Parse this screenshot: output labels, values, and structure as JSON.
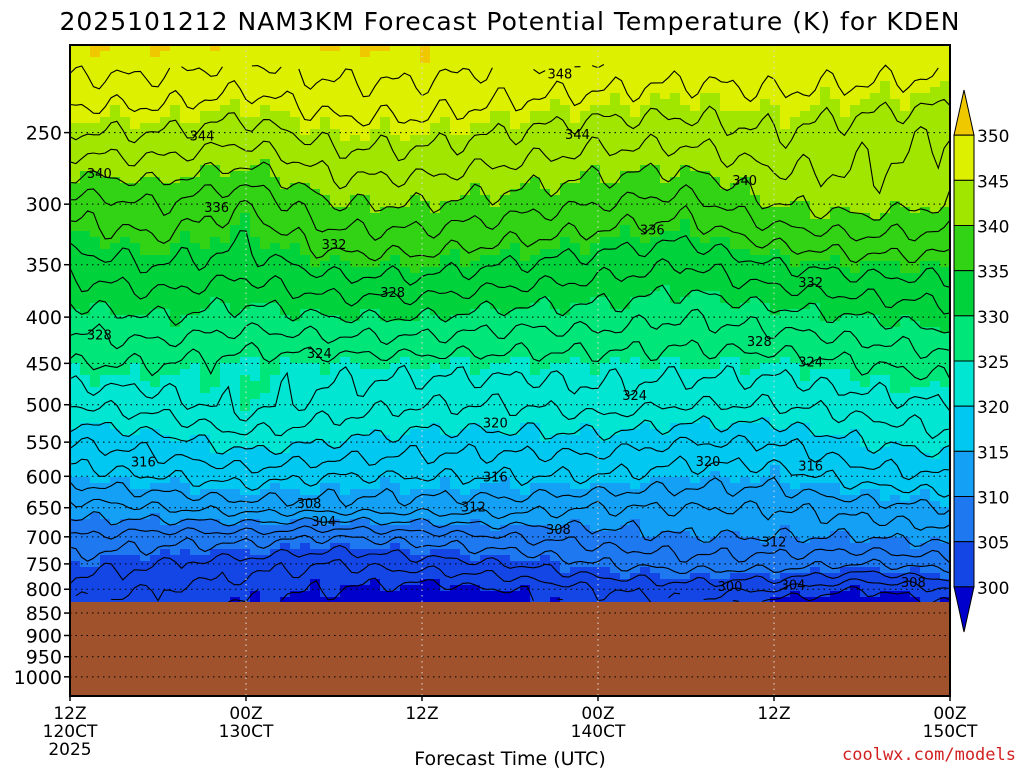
{
  "chart_data": {
    "type": "heatmap",
    "title": "2025101212 NAM3KM Forecast Potential Temperature (K) for KDEN",
    "xlabel": "Forecast Time (UTC)",
    "ylabel": "",
    "credit": "coolwx.com/models",
    "x_ticks": [
      {
        "hour": 0,
        "line1": "12Z",
        "line2": "120CT",
        "line3": "2025"
      },
      {
        "hour": 12,
        "line1": "00Z",
        "line2": "130CT",
        "line3": ""
      },
      {
        "hour": 24,
        "line1": "12Z",
        "line2": "",
        "line3": ""
      },
      {
        "hour": 36,
        "line1": "00Z",
        "line2": "140CT",
        "line3": ""
      },
      {
        "hour": 48,
        "line1": "12Z",
        "line2": "",
        "line3": ""
      },
      {
        "hour": 60,
        "line1": "00Z",
        "line2": "150CT",
        "line3": ""
      }
    ],
    "x_range": [
      0,
      60
    ],
    "y_ticks": [
      250,
      300,
      350,
      400,
      450,
      500,
      550,
      600,
      650,
      700,
      750,
      800,
      850,
      900,
      950,
      1000
    ],
    "y_range_hPa": [
      200,
      1050
    ],
    "y_scale": "log-pressure",
    "ground_level_hPa": 830,
    "colorbar": {
      "levels": [
        300,
        305,
        310,
        315,
        320,
        325,
        330,
        335,
        340,
        345,
        350
      ],
      "labels": [
        "300",
        "305",
        "310",
        "315",
        "320",
        "325",
        "330",
        "335",
        "340",
        "345",
        "350"
      ],
      "colors": [
        "#0000cc",
        "#1446e6",
        "#1e78f0",
        "#14a0f5",
        "#00c8f0",
        "#00e6d2",
        "#00e678",
        "#00d23c",
        "#32d214",
        "#a0e600",
        "#dcf000",
        "#f0c800"
      ],
      "extend": "both"
    },
    "contour_labels": [
      {
        "text": "348",
        "hour": 33.4,
        "p": 215
      },
      {
        "text": "344",
        "hour": 9.0,
        "p": 252
      },
      {
        "text": "344",
        "hour": 34.6,
        "p": 251
      },
      {
        "text": "340",
        "hour": 2.0,
        "p": 277
      },
      {
        "text": "340",
        "hour": 46.0,
        "p": 282
      },
      {
        "text": "336",
        "hour": 10.0,
        "p": 302
      },
      {
        "text": "336",
        "hour": 39.7,
        "p": 320
      },
      {
        "text": "332",
        "hour": 18.0,
        "p": 332
      },
      {
        "text": "332",
        "hour": 50.5,
        "p": 366
      },
      {
        "text": "328",
        "hour": 22.0,
        "p": 375
      },
      {
        "text": "328",
        "hour": 2.0,
        "p": 418
      },
      {
        "text": "328",
        "hour": 47.0,
        "p": 425
      },
      {
        "text": "324",
        "hour": 17.0,
        "p": 438
      },
      {
        "text": "324",
        "hour": 50.5,
        "p": 448
      },
      {
        "text": "324",
        "hour": 38.5,
        "p": 488
      },
      {
        "text": "320",
        "hour": 29.0,
        "p": 523
      },
      {
        "text": "320",
        "hour": 43.5,
        "p": 577
      },
      {
        "text": "316",
        "hour": 5.0,
        "p": 578
      },
      {
        "text": "316",
        "hour": 50.5,
        "p": 584
      },
      {
        "text": "316",
        "hour": 29.0,
        "p": 600
      },
      {
        "text": "312",
        "hour": 27.5,
        "p": 648
      },
      {
        "text": "308",
        "hour": 16.3,
        "p": 642
      },
      {
        "text": "308",
        "hour": 33.3,
        "p": 686
      },
      {
        "text": "304",
        "hour": 17.3,
        "p": 672
      },
      {
        "text": "312",
        "hour": 48.0,
        "p": 708
      },
      {
        "text": "300",
        "hour": 45.0,
        "p": 793
      },
      {
        "text": "304",
        "hour": 49.3,
        "p": 790
      },
      {
        "text": "308",
        "hour": 57.5,
        "p": 785
      }
    ],
    "fields": {
      "levels_hPa": [
        200,
        250,
        300,
        350,
        400,
        450,
        500,
        550,
        600,
        650,
        700,
        750,
        800,
        830
      ],
      "hours": [
        0,
        6,
        12,
        18,
        24,
        30,
        36,
        42,
        48,
        54,
        60
      ],
      "theta_K": [
        [
          350,
          350,
          349,
          350,
          350,
          349,
          349,
          348,
          348,
          348,
          348
        ],
        [
          344,
          344,
          343,
          345,
          345,
          344,
          343,
          343,
          344,
          343,
          342
        ],
        [
          337,
          338,
          336,
          340,
          340,
          339,
          338,
          337,
          340,
          341,
          340
        ],
        [
          333,
          334,
          333,
          335,
          335,
          334,
          333,
          332,
          334,
          335,
          335
        ],
        [
          329,
          330,
          329,
          330,
          330,
          329,
          329,
          328,
          329,
          330,
          331
        ],
        [
          326,
          326,
          325,
          325,
          325,
          325,
          325,
          325,
          325,
          326,
          327
        ],
        [
          322,
          323,
          325,
          323,
          322,
          322,
          323,
          322,
          322,
          323,
          324
        ],
        [
          318,
          319,
          321,
          320,
          319,
          319,
          319,
          318,
          318,
          320,
          321
        ],
        [
          315,
          316,
          317,
          316,
          316,
          316,
          316,
          315,
          315,
          317,
          318
        ],
        [
          311,
          312,
          313,
          313,
          313,
          313,
          312,
          312,
          312,
          313,
          314
        ],
        [
          308,
          307,
          307,
          306,
          307,
          308,
          309,
          310,
          310,
          310,
          311
        ],
        [
          305,
          304,
          303,
          302,
          303,
          304,
          306,
          307,
          307,
          306,
          307
        ],
        [
          303,
          302,
          301,
          300,
          299,
          300,
          302,
          303,
          302,
          300,
          302
        ],
        [
          302,
          301,
          300,
          299,
          298,
          299,
          301,
          302,
          299,
          298,
          300
        ]
      ]
    }
  }
}
